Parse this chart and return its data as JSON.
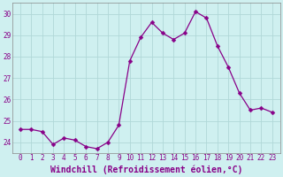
{
  "x": [
    0,
    1,
    2,
    3,
    4,
    5,
    6,
    7,
    8,
    9,
    10,
    11,
    12,
    13,
    14,
    15,
    16,
    17,
    18,
    19,
    20,
    21,
    22,
    23
  ],
  "y": [
    24.6,
    24.6,
    24.5,
    23.9,
    24.2,
    24.1,
    23.8,
    23.7,
    24.0,
    24.8,
    27.8,
    28.9,
    29.6,
    29.1,
    28.8,
    29.1,
    30.1,
    29.8,
    28.5,
    27.5,
    26.3,
    25.5,
    25.6,
    25.4
  ],
  "line_color": "#880088",
  "marker_color": "#880088",
  "bg_color": "#cff0f0",
  "grid_color": "#b0d8d8",
  "tick_label_color": "#880088",
  "xlabel": "Windchill (Refroidissement éolien,°C)",
  "ylim": [
    23.5,
    30.5
  ],
  "yticks": [
    24,
    25,
    26,
    27,
    28,
    29,
    30
  ],
  "xtick_labels": [
    "0",
    "1",
    "2",
    "3",
    "4",
    "5",
    "6",
    "7",
    "8",
    "9",
    "10",
    "11",
    "12",
    "13",
    "14",
    "15",
    "16",
    "17",
    "18",
    "19",
    "20",
    "21",
    "22",
    "23"
  ],
  "tick_fontsize": 5.5,
  "xlabel_fontsize": 7.0,
  "line_width": 0.9,
  "marker_size": 2.5
}
